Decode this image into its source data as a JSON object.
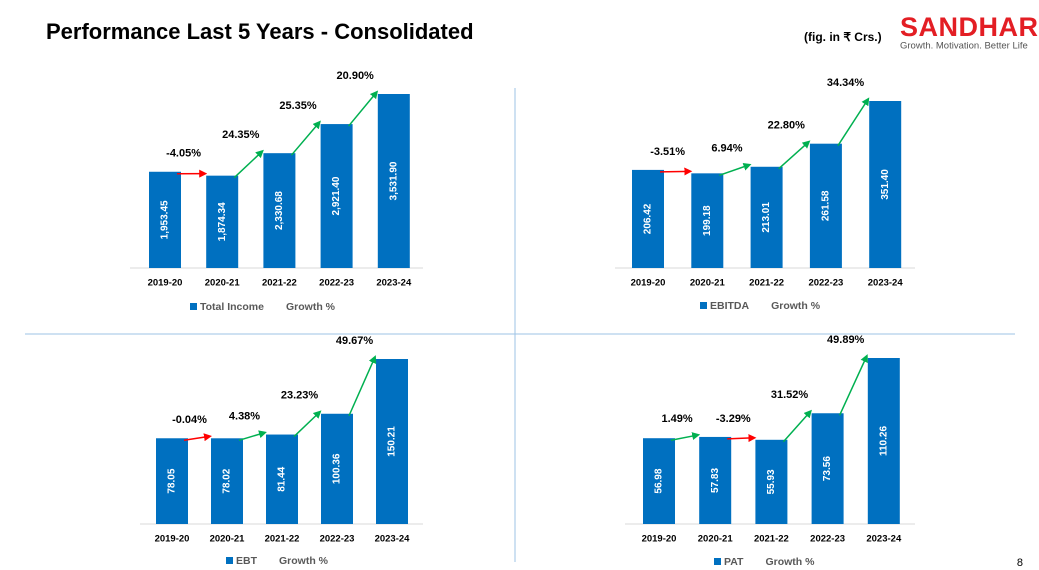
{
  "title": "Performance Last 5 Years - Consolidated",
  "unit_note": "(fig. in ₹ Crs.)",
  "logo": {
    "name": "SANDHAR",
    "tagline": "Growth. Motivation. Better Life"
  },
  "page_number": 8,
  "chart_data": [
    {
      "type": "bar",
      "categories": [
        "2019-20",
        "2020-21",
        "2021-22",
        "2022-23",
        "2023-24"
      ],
      "series": [
        {
          "name": "Total Income",
          "color": "#0070c0",
          "values": [
            1953.45,
            1874.34,
            2330.68,
            2921.4,
            3531.9
          ],
          "value_labels": [
            "1,953.45",
            "1,874.34",
            "2,330.68",
            "2,921.40",
            "3,531.90"
          ]
        },
        {
          "name": "Growth %",
          "color": "#00b050",
          "negative_color": "#ff0000",
          "values": [
            null,
            -4.05,
            24.35,
            25.35,
            20.9
          ],
          "value_labels": [
            null,
            "-4.05%",
            "24.35%",
            "25.35%",
            "20.90%"
          ]
        }
      ]
    },
    {
      "type": "bar",
      "categories": [
        "2019-20",
        "2020-21",
        "2021-22",
        "2022-23",
        "2023-24"
      ],
      "series": [
        {
          "name": "EBITDA",
          "color": "#0070c0",
          "values": [
            206.42,
            199.18,
            213.01,
            261.58,
            351.4
          ],
          "value_labels": [
            "206.42",
            "199.18",
            "213.01",
            "261.58",
            "351.40"
          ]
        },
        {
          "name": "Growth %",
          "color": "#00b050",
          "negative_color": "#ff0000",
          "values": [
            null,
            -3.51,
            6.94,
            22.8,
            34.34
          ],
          "value_labels": [
            null,
            "-3.51%",
            "6.94%",
            "22.80%",
            "34.34%"
          ]
        }
      ]
    },
    {
      "type": "bar",
      "categories": [
        "2019-20",
        "2020-21",
        "2021-22",
        "2022-23",
        "2023-24"
      ],
      "series": [
        {
          "name": "EBT",
          "color": "#0070c0",
          "values": [
            78.05,
            78.02,
            81.44,
            100.36,
            150.21
          ],
          "value_labels": [
            "78.05",
            "78.02",
            "81.44",
            "100.36",
            "150.21"
          ]
        },
        {
          "name": "Growth %",
          "color": "#00b050",
          "negative_color": "#ff0000",
          "values": [
            null,
            -0.04,
            4.38,
            23.23,
            49.67
          ],
          "value_labels": [
            null,
            "-0.04%",
            "4.38%",
            "23.23%",
            "49.67%"
          ]
        }
      ]
    },
    {
      "type": "bar",
      "categories": [
        "2019-20",
        "2020-21",
        "2021-22",
        "2022-23",
        "2023-24"
      ],
      "series": [
        {
          "name": "PAT",
          "color": "#0070c0",
          "values": [
            56.98,
            57.83,
            55.93,
            73.56,
            110.26
          ],
          "value_labels": [
            "56.98",
            "57.83",
            "55.93",
            "73.56",
            "110.26"
          ]
        },
        {
          "name": "Growth %",
          "color": "#00b050",
          "negative_color": "#ff0000",
          "values": [
            null,
            1.49,
            -3.29,
            31.52,
            49.89
          ],
          "value_labels": [
            null,
            "1.49%",
            "-3.29%",
            "31.52%",
            "49.89%"
          ]
        }
      ]
    }
  ]
}
